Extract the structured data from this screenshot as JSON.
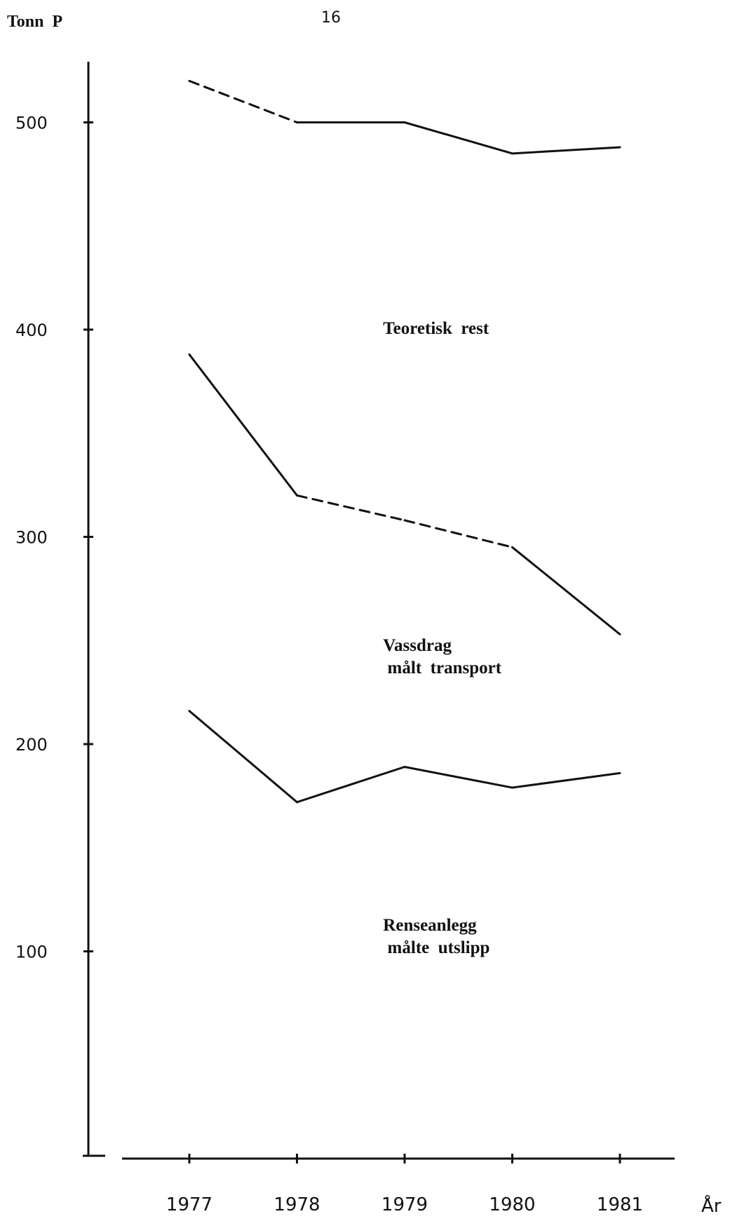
{
  "page_number": "16",
  "chart_data": {
    "type": "line",
    "ylabel": "Tonn  P",
    "xlabel": "År",
    "x": [
      "1977",
      "1978",
      "1979",
      "1980",
      "1981"
    ],
    "yticks": [
      "100",
      "200",
      "300",
      "400",
      "500"
    ],
    "ylim": [
      0,
      530
    ],
    "grid": false,
    "series": [
      {
        "key": "teoretisk",
        "values": [
          520,
          500,
          500,
          485,
          488
        ],
        "dashed_segments": [
          0
        ]
      },
      {
        "key": "vassdrag",
        "values": [
          388,
          320,
          308,
          295,
          253
        ],
        "dashed_segments": [
          1,
          2
        ]
      },
      {
        "key": "renseanlegg",
        "values": [
          216,
          172,
          189,
          179,
          186
        ],
        "dashed_segments": []
      }
    ],
    "region_labels": [
      {
        "lines": [
          "Teoretisk  rest"
        ],
        "anchor_year": "1978.8",
        "anchor_value": 398
      },
      {
        "lines": [
          "Vassdrag",
          " målt  transport"
        ],
        "anchor_year": "1978.8",
        "anchor_value": 245
      },
      {
        "lines": [
          "Renseanlegg",
          " målte  utslipp"
        ],
        "anchor_year": "1978.8",
        "anchor_value": 110
      }
    ]
  }
}
